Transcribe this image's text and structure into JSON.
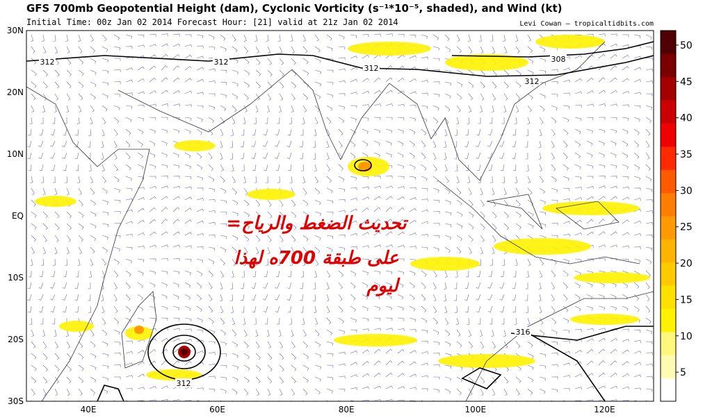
{
  "header": {
    "title": "GFS 700mb Geopotential Height (dam), Cyclonic Vorticity (s⁻¹*10⁻⁵, shaded), and Wind (kt)",
    "subtitle": "Initial Time: 00z Jan 02 2014 Forecast Hour: [21] valid at 21z Jan 02 2014",
    "credit": "Levi Cowan – tropicaltidbits.com"
  },
  "map": {
    "lat_labels": [
      "30N",
      "20N",
      "10N",
      "EQ",
      "10S",
      "20S",
      "30S"
    ],
    "lon_labels": [
      "40E",
      "60E",
      "80E",
      "100E",
      "120E"
    ],
    "contour_labels": [
      "312",
      "312",
      "312",
      "308",
      "312",
      "316",
      "312"
    ]
  },
  "colorbar": {
    "range": [
      1,
      52
    ],
    "ticks": [
      5,
      10,
      15,
      20,
      25,
      30,
      35,
      40,
      45,
      50
    ],
    "colors": [
      "#ffffff",
      "#fffbb0",
      "#fff77a",
      "#fff200",
      "#ffe100",
      "#ffcb00",
      "#ffb400",
      "#ff9a00",
      "#ff7d00",
      "#ff5a00",
      "#ff2a00",
      "#f00000",
      "#cc0000",
      "#a50000",
      "#7a0000",
      "#500000"
    ]
  },
  "overlay": {
    "lines": [
      "=تحديث الضغط والرياح",
      "على طبقة 700ه لهذا",
      "ليوم"
    ]
  }
}
